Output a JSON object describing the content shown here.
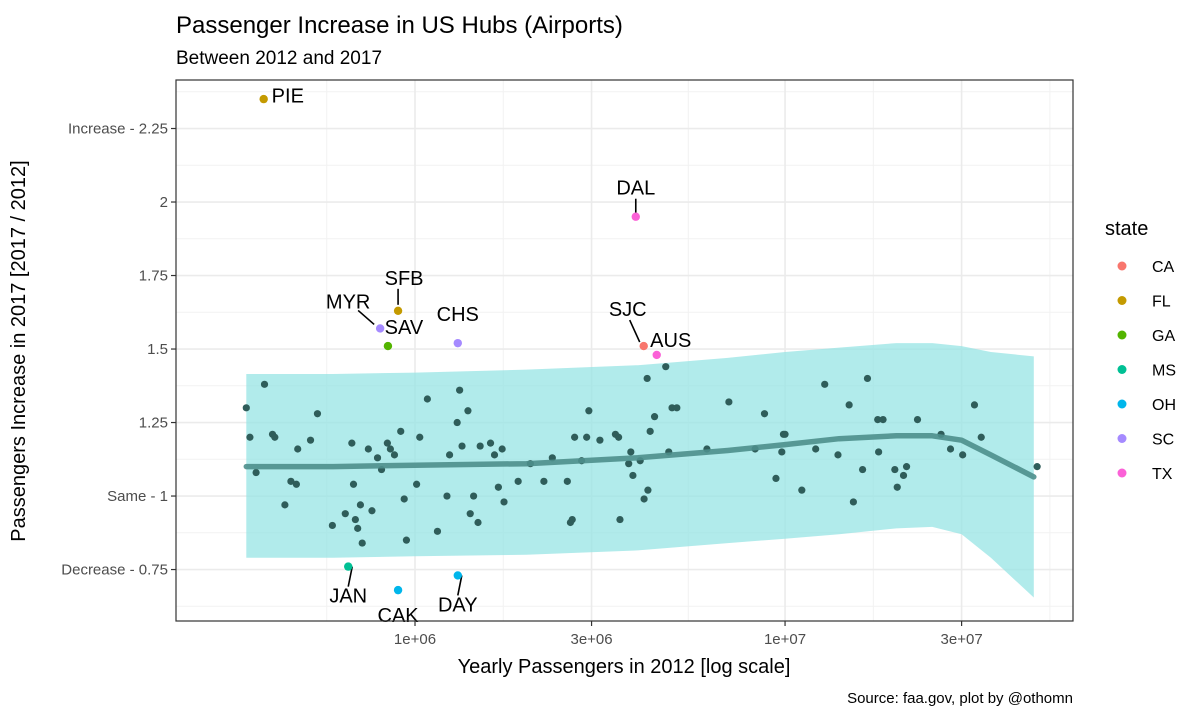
{
  "chart_data": {
    "type": "scatter",
    "title": "Passenger Increase in US Hubs (Airports)",
    "subtitle": "Between 2012 and 2017",
    "caption": "Source: faa.gov, plot by @othomn",
    "xlabel": "Yearly Passengers in 2012 [log scale]",
    "ylabel": "Passengers Increase in 2017 [2017 / 2012]",
    "x_scale": "log10",
    "xlim": [
      226000,
      60000000
    ],
    "ylim": [
      0.575,
      2.415
    ],
    "x_ticks": [
      {
        "value": 1000000,
        "label": "1e+06"
      },
      {
        "value": 3000000,
        "label": "3e+06"
      },
      {
        "value": 10000000,
        "label": "1e+07"
      },
      {
        "value": 30000000,
        "label": "3e+07"
      }
    ],
    "y_ticks": [
      {
        "value": 0.75,
        "label": "Decrease -  0.75"
      },
      {
        "value": 1,
        "label": "Same -  1"
      },
      {
        "value": 1.25,
        "label": "1.25"
      },
      {
        "value": 1.5,
        "label": "1.5"
      },
      {
        "value": 1.75,
        "label": "1.75"
      },
      {
        "value": 2,
        "label": "2"
      },
      {
        "value": 2.25,
        "label": "Increase -  2.25"
      }
    ],
    "grid": true,
    "legend": {
      "title": "state",
      "position": "right",
      "items": [
        {
          "label": "CA",
          "color": "#F8766D"
        },
        {
          "label": "FL",
          "color": "#C49A00"
        },
        {
          "label": "GA",
          "color": "#53B400"
        },
        {
          "label": "MS",
          "color": "#00C094"
        },
        {
          "label": "OH",
          "color": "#00B6EB"
        },
        {
          "label": "SC",
          "color": "#A58AFF"
        },
        {
          "label": "TX",
          "color": "#FB61D7"
        }
      ]
    },
    "highlighted": [
      {
        "label": "PIE",
        "state": "FL",
        "x": 390000,
        "y": 2.35
      },
      {
        "label": "DAL",
        "state": "TX",
        "x": 3950000,
        "y": 1.95
      },
      {
        "label": "SFB",
        "state": "FL",
        "x": 900000,
        "y": 1.63
      },
      {
        "label": "MYR",
        "state": "SC",
        "x": 805000,
        "y": 1.57
      },
      {
        "label": "SAV",
        "state": "GA",
        "x": 845000,
        "y": 1.51
      },
      {
        "label": "CHS",
        "state": "SC",
        "x": 1305000,
        "y": 1.52
      },
      {
        "label": "SJC",
        "state": "CA",
        "x": 4150000,
        "y": 1.51
      },
      {
        "label": "AUS",
        "state": "TX",
        "x": 4500000,
        "y": 1.48
      },
      {
        "label": "JAN",
        "state": "MS",
        "x": 660000,
        "y": 0.76
      },
      {
        "label": "CAK",
        "state": "OH",
        "x": 900000,
        "y": 0.68
      },
      {
        "label": "DAY",
        "state": "OH",
        "x": 1305000,
        "y": 0.73
      }
    ],
    "other_points_color": "#2F5D5A",
    "other_points": [
      [
        350000,
        1.3
      ],
      [
        358000,
        1.2
      ],
      [
        372000,
        1.08
      ],
      [
        392000,
        1.38
      ],
      [
        412000,
        1.21
      ],
      [
        418000,
        1.2
      ],
      [
        445000,
        0.97
      ],
      [
        462000,
        1.05
      ],
      [
        478000,
        1.04
      ],
      [
        482000,
        1.16
      ],
      [
        522000,
        1.19
      ],
      [
        545000,
        1.28
      ],
      [
        598000,
        0.9
      ],
      [
        648000,
        0.94
      ],
      [
        675000,
        1.18
      ],
      [
        682000,
        1.04
      ],
      [
        690000,
        0.92
      ],
      [
        700000,
        0.89
      ],
      [
        712000,
        0.97
      ],
      [
        720000,
        0.84
      ],
      [
        748000,
        1.16
      ],
      [
        765000,
        0.95
      ],
      [
        792000,
        1.13
      ],
      [
        812000,
        1.09
      ],
      [
        842000,
        1.18
      ],
      [
        858000,
        1.16
      ],
      [
        880000,
        1.14
      ],
      [
        915000,
        1.22
      ],
      [
        935000,
        0.99
      ],
      [
        948000,
        0.85
      ],
      [
        1010000,
        1.04
      ],
      [
        1030000,
        1.2
      ],
      [
        1080000,
        1.33
      ],
      [
        1150000,
        0.88
      ],
      [
        1220000,
        1.0
      ],
      [
        1240000,
        1.14
      ],
      [
        1300000,
        1.25
      ],
      [
        1320000,
        1.36
      ],
      [
        1340000,
        1.17
      ],
      [
        1390000,
        1.29
      ],
      [
        1410000,
        0.94
      ],
      [
        1440000,
        1.0
      ],
      [
        1480000,
        0.91
      ],
      [
        1500000,
        1.17
      ],
      [
        1600000,
        1.18
      ],
      [
        1640000,
        1.14
      ],
      [
        1680000,
        1.03
      ],
      [
        1720000,
        1.16
      ],
      [
        1740000,
        0.98
      ],
      [
        1900000,
        1.05
      ],
      [
        2050000,
        1.11
      ],
      [
        2230000,
        1.05
      ],
      [
        2350000,
        1.13
      ],
      [
        2580000,
        1.05
      ],
      [
        2630000,
        0.91
      ],
      [
        2660000,
        0.92
      ],
      [
        2700000,
        1.2
      ],
      [
        2820000,
        1.12
      ],
      [
        2910000,
        1.2
      ],
      [
        2950000,
        1.29
      ],
      [
        3160000,
        1.19
      ],
      [
        3480000,
        1.21
      ],
      [
        3550000,
        1.2
      ],
      [
        3580000,
        0.92
      ],
      [
        3780000,
        1.11
      ],
      [
        3830000,
        1.15
      ],
      [
        3880000,
        1.07
      ],
      [
        4060000,
        1.12
      ],
      [
        4160000,
        0.99
      ],
      [
        4240000,
        1.4
      ],
      [
        4260000,
        1.02
      ],
      [
        4320000,
        1.22
      ],
      [
        4440000,
        1.27
      ],
      [
        4760000,
        1.44
      ],
      [
        4850000,
        1.15
      ],
      [
        4950000,
        1.3
      ],
      [
        5100000,
        1.3
      ],
      [
        6150000,
        1.16
      ],
      [
        7050000,
        1.32
      ],
      [
        8300000,
        1.16
      ],
      [
        8800000,
        1.28
      ],
      [
        9450000,
        1.06
      ],
      [
        9800000,
        1.15
      ],
      [
        9900000,
        1.21
      ],
      [
        10000000,
        1.21
      ],
      [
        11100000,
        1.02
      ],
      [
        12100000,
        1.16
      ],
      [
        12800000,
        1.38
      ],
      [
        13900000,
        1.14
      ],
      [
        14900000,
        1.31
      ],
      [
        15300000,
        0.98
      ],
      [
        16200000,
        1.09
      ],
      [
        16700000,
        1.4
      ],
      [
        17800000,
        1.26
      ],
      [
        17900000,
        1.15
      ],
      [
        18400000,
        1.26
      ],
      [
        19800000,
        1.09
      ],
      [
        20100000,
        1.03
      ],
      [
        20900000,
        1.07
      ],
      [
        21300000,
        1.1
      ],
      [
        22800000,
        1.26
      ],
      [
        26400000,
        1.21
      ],
      [
        28000000,
        1.16
      ],
      [
        30200000,
        1.14
      ],
      [
        32500000,
        1.31
      ],
      [
        33900000,
        1.2
      ],
      [
        48000000,
        1.1
      ]
    ],
    "smooth_trend": {
      "x": [
        350000,
        600000,
        1000000,
        2000000,
        4000000,
        7000000,
        10000000,
        14000000,
        20000000,
        25000000,
        30000000,
        36000000,
        47000000
      ],
      "fit": [
        1.1,
        1.1,
        1.105,
        1.11,
        1.13,
        1.155,
        1.175,
        1.195,
        1.205,
        1.205,
        1.19,
        1.14,
        1.065
      ],
      "upper": [
        1.415,
        1.415,
        1.42,
        1.43,
        1.445,
        1.47,
        1.49,
        1.505,
        1.52,
        1.52,
        1.51,
        1.49,
        1.475
      ],
      "lower": [
        0.79,
        0.79,
        0.795,
        0.8,
        0.815,
        0.84,
        0.855,
        0.87,
        0.89,
        0.895,
        0.87,
        0.79,
        0.655
      ],
      "line_color": "#4E8F8C",
      "band_color": "#97E4E4"
    }
  }
}
